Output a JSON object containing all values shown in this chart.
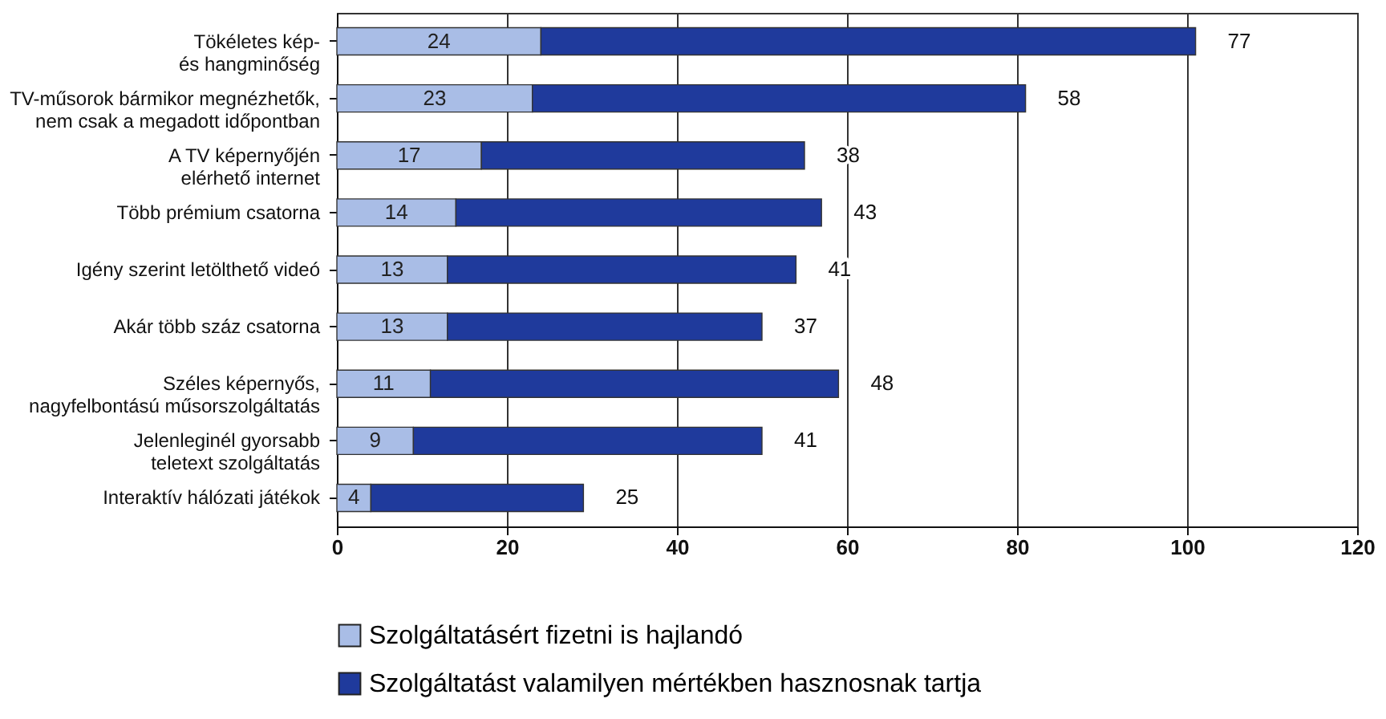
{
  "chart_data": {
    "type": "bar",
    "orientation": "horizontal",
    "stacked": true,
    "categories": [
      "Tökéletes kép-\nés hangminőség",
      "TV-műsorok bármikor megnézhetők,\nnem csak a megadott időpontban",
      "A TV képernyőjén\nelérhető internet",
      "Több prémium csatorna",
      "Igény szerint letölthető videó",
      "Akár több száz csatorna",
      "Széles képernyős,\nnagyfelbontású műsorszolgáltatás",
      "Jelenleginél gyorsabb\nteletext szolgáltatás",
      "Interaktív hálózati játékok"
    ],
    "series": [
      {
        "name": "Szolgáltatásért fizetni is hajlandó",
        "color": "#a9bde6",
        "values": [
          24,
          23,
          17,
          14,
          13,
          13,
          11,
          9,
          4
        ]
      },
      {
        "name": "Szolgáltatást valamilyen mértékben hasznosnak tartja",
        "color": "#1f3a9c",
        "values": [
          77,
          58,
          38,
          43,
          41,
          37,
          48,
          41,
          25
        ]
      }
    ],
    "xlim": [
      0,
      120
    ],
    "xticks": [
      0,
      20,
      40,
      60,
      80,
      100,
      120
    ],
    "grid": "x",
    "legend": "bottom",
    "data_labels": true
  }
}
